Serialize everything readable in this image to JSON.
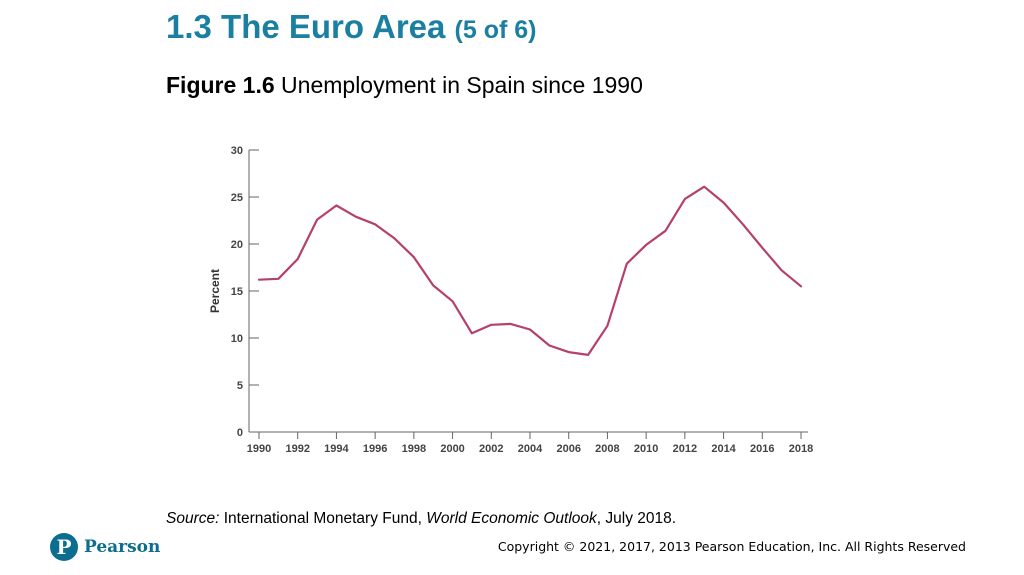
{
  "slide": {
    "title_main": "1.3 The Euro Area",
    "title_sub": "(5 of 6)",
    "figure_label": "Figure 1.6",
    "figure_title": "Unemployment in Spain since 1990",
    "source_label": "Source:",
    "source_text_1": " International Monetary Fund, ",
    "source_publication": "World Economic Outlook",
    "source_text_2": ", July 2018.",
    "logo_letter": "P",
    "logo_text": "Pearson",
    "copyright": "Copyright © 2021, 2017, 2013 Pearson Education, Inc. All Rights Reserved"
  },
  "chart_data": {
    "type": "line",
    "title": "",
    "xlabel": "",
    "ylabel": "Percent",
    "xlim": [
      1990,
      2018
    ],
    "ylim": [
      0,
      30
    ],
    "x_ticks": [
      1990,
      1992,
      1994,
      1996,
      1998,
      2000,
      2002,
      2004,
      2006,
      2008,
      2010,
      2012,
      2014,
      2016,
      2018
    ],
    "y_ticks": [
      0,
      5,
      10,
      15,
      20,
      25,
      30
    ],
    "grid": false,
    "line_color": "#b5406e",
    "series": [
      {
        "x": [
          1990,
          1991,
          1992,
          1993,
          1994,
          1995,
          1996,
          1997,
          1998,
          1999,
          2000,
          2001,
          2002,
          2003,
          2004,
          2005,
          2006,
          2007,
          2008,
          2009,
          2010,
          2011,
          2012,
          2013,
          2014,
          2015,
          2016,
          2017,
          2018
        ],
        "values": [
          16.2,
          16.3,
          18.4,
          22.6,
          24.1,
          22.9,
          22.1,
          20.6,
          18.6,
          15.6,
          13.9,
          10.5,
          11.4,
          11.5,
          10.9,
          9.2,
          8.5,
          8.2,
          11.3,
          17.9,
          19.9,
          21.4,
          24.8,
          26.1,
          24.4,
          22.1,
          19.6,
          17.2,
          15.5
        ]
      }
    ]
  }
}
